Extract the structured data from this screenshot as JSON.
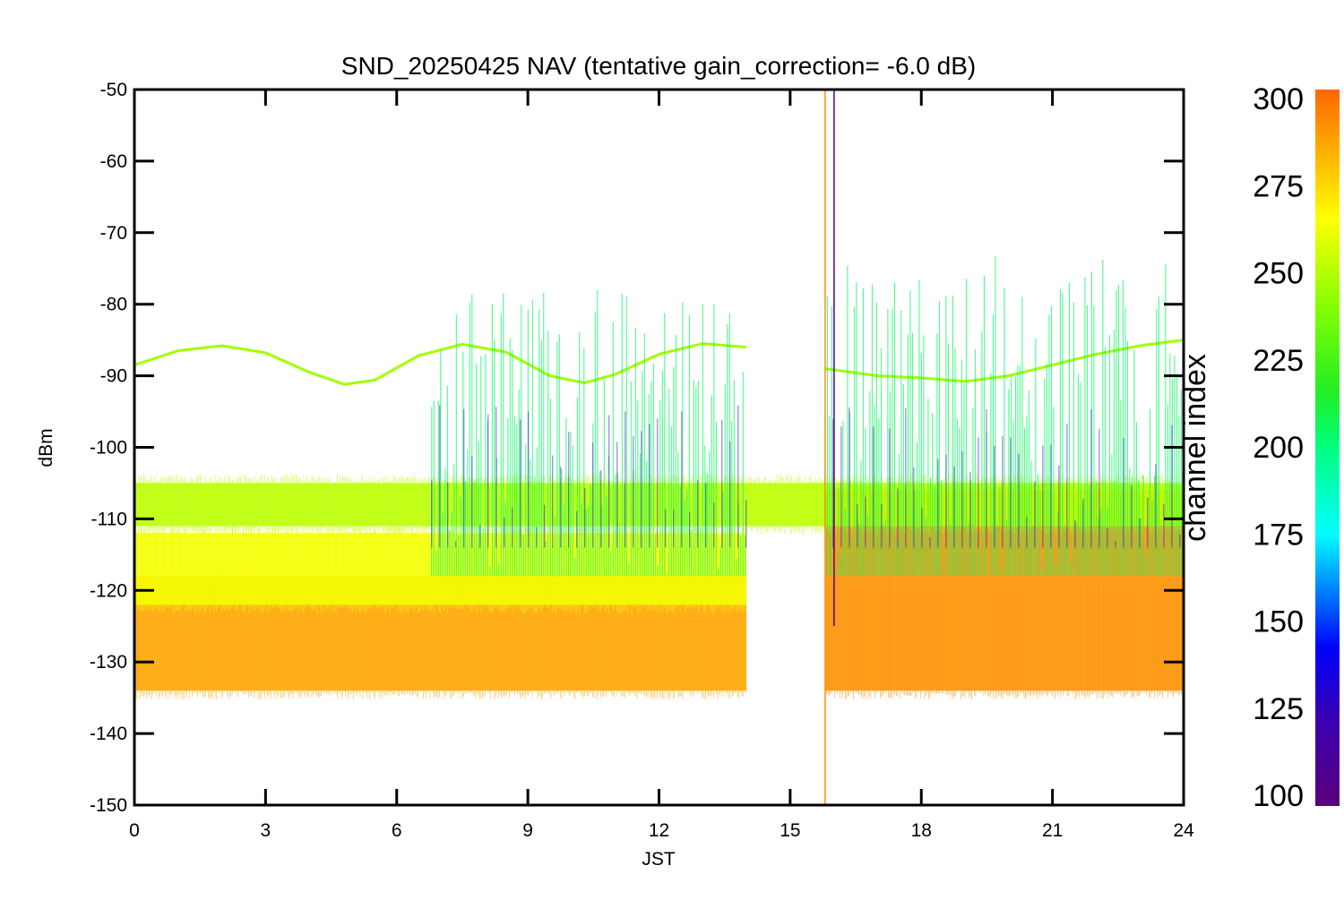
{
  "chart_data": {
    "type": "line",
    "title": "SND_20250425 NAV (tentative gain_correction= -6.0 dB)",
    "xlabel": "JST",
    "ylabel": "dBm",
    "xlim": [
      0,
      24
    ],
    "ylim": [
      -150,
      -50
    ],
    "x_ticks": [
      0,
      3,
      6,
      9,
      12,
      15,
      18,
      21,
      24
    ],
    "y_ticks": [
      -150,
      -140,
      -130,
      -120,
      -110,
      -100,
      -90,
      -80,
      -70,
      -60,
      -50
    ],
    "grid": false,
    "data_gap": [
      14.0,
      15.8
    ],
    "series": [
      {
        "color_value": 245,
        "x": [
          0,
          1,
          2,
          3,
          4,
          4.8,
          5.5,
          6.5,
          7.5,
          8.5,
          9.5,
          10.3,
          11,
          12,
          13,
          14,
          15.8,
          17,
          18,
          19,
          20,
          21,
          22,
          23,
          24
        ],
        "values": [
          -88.5,
          -86.5,
          -85.8,
          -86.8,
          -89.5,
          -91.2,
          -90.6,
          -87.2,
          -85.6,
          -86.7,
          -90.0,
          -91.0,
          -89.8,
          -87.0,
          -85.5,
          -86.0,
          -89.0,
          -90.0,
          -90.3,
          -90.8,
          -90.0,
          -88.5,
          -87.0,
          -85.8,
          -85.0
        ]
      },
      {
        "color_value": 285,
        "x": [
          0,
          14
        ],
        "band": [
          -134,
          -118
        ]
      },
      {
        "color_value": 290,
        "x": [
          15.8,
          24
        ],
        "band": [
          -134,
          -106
        ]
      },
      {
        "color_value": 262,
        "x": [
          0,
          14
        ],
        "band": [
          -122,
          -112
        ]
      },
      {
        "color_value": 250,
        "x": [
          0,
          24
        ],
        "band": [
          -111,
          -105
        ]
      },
      {
        "color_value": 205,
        "x": [
          6.8,
          14
        ],
        "range": [
          -118,
          -78
        ]
      },
      {
        "color_value": 205,
        "x": [
          15.8,
          24
        ],
        "range": [
          -118,
          -73
        ]
      }
    ],
    "colorbar": {
      "label": "channel index",
      "range": [
        100,
        300
      ],
      "ticks": [
        100,
        125,
        150,
        175,
        200,
        225,
        250,
        275,
        300
      ]
    }
  }
}
